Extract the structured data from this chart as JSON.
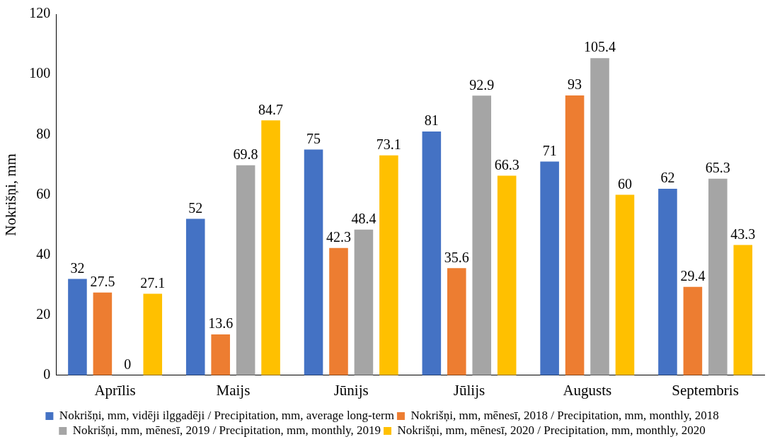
{
  "chart_data": {
    "type": "bar",
    "ylabel": "Nokrišņi, mm",
    "categories": [
      "Aprīlis",
      "Maijs",
      "Jūnijs",
      "Jūlijs",
      "Augusts",
      "Septembris"
    ],
    "series": [
      {
        "name": "Nokrišņi, mm, vidēji ilggadēji / Precipitation, mm, average long-term",
        "color": "#4472c4",
        "values": [
          32,
          52,
          75,
          81,
          71,
          62
        ]
      },
      {
        "name": "Nokrišņi, mm, mēnesī, 2018 / Precipitation, mm, monthly, 2018",
        "color": "#ed7d31",
        "values": [
          27.5,
          13.6,
          42.3,
          35.6,
          93,
          29.4
        ]
      },
      {
        "name": "Nokrišņi, mm, mēnesī, 2019 / Precipitation, mm, monthly, 2019",
        "color": "#a5a5a5",
        "values": [
          0,
          69.8,
          48.4,
          92.9,
          105.4,
          65.3
        ]
      },
      {
        "name": "Nokrišņi, mm, mēnesī, 2020 / Precipitation, mm, monthly, 2020",
        "color": "#ffc000",
        "values": [
          27.1,
          84.7,
          73.1,
          66.3,
          60,
          43.3
        ]
      }
    ],
    "ylim": [
      0,
      120
    ],
    "yticks": [
      0,
      20,
      40,
      60,
      80,
      100,
      120
    ],
    "grid": false,
    "legend": "bottom",
    "data_labels": true
  }
}
